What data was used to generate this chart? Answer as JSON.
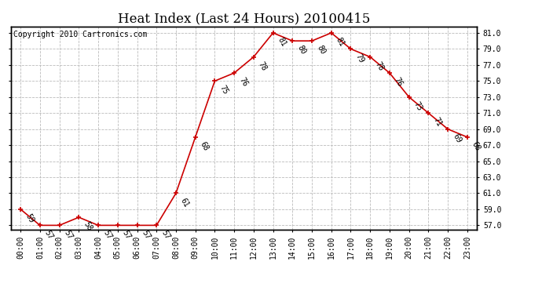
{
  "title": "Heat Index (Last 24 Hours) 20100415",
  "copyright": "Copyright 2010 Cartronics.com",
  "x_labels": [
    "00:00",
    "01:00",
    "02:00",
    "03:00",
    "04:00",
    "05:00",
    "06:00",
    "07:00",
    "08:00",
    "09:00",
    "10:00",
    "11:00",
    "12:00",
    "13:00",
    "14:00",
    "15:00",
    "16:00",
    "17:00",
    "18:00",
    "19:00",
    "20:00",
    "21:00",
    "22:00",
    "23:00"
  ],
  "y_values": [
    59,
    57,
    57,
    58,
    57,
    57,
    57,
    57,
    61,
    68,
    75,
    76,
    78,
    81,
    80,
    80,
    81,
    79,
    78,
    76,
    73,
    71,
    69,
    68
  ],
  "y_ticks": [
    57.0,
    59.0,
    61.0,
    63.0,
    65.0,
    67.0,
    69.0,
    71.0,
    73.0,
    75.0,
    77.0,
    79.0,
    81.0
  ],
  "ylim_min": 56.5,
  "ylim_max": 81.8,
  "line_color": "#cc0000",
  "marker_color": "#cc0000",
  "bg_color": "#ffffff",
  "grid_color": "#bbbbbb",
  "title_fontsize": 12,
  "tick_fontsize": 7,
  "annotation_fontsize": 7,
  "copyright_fontsize": 7
}
